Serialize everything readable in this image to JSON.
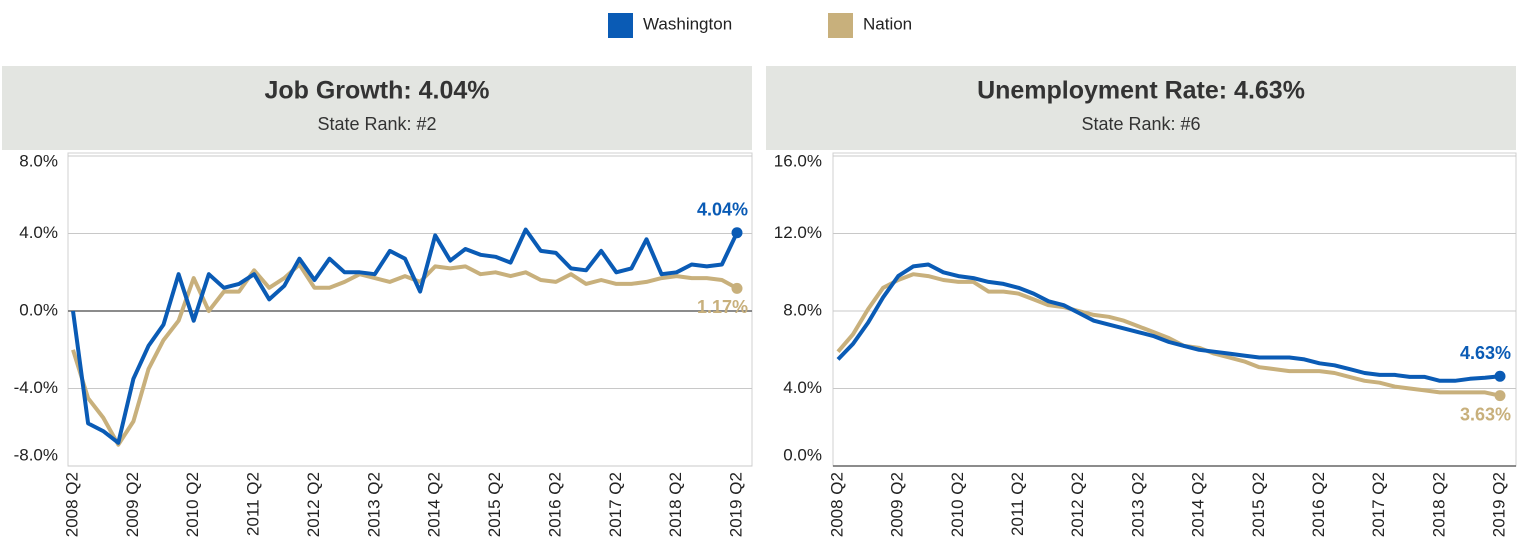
{
  "legend_position": "top",
  "chart_data": [
    {
      "type": "line",
      "title": "Job Growth: 4.04%",
      "subtitle": "State Rank: #2",
      "categories": [
        "2008 Q2",
        null,
        null,
        null,
        "2009 Q2",
        null,
        null,
        null,
        "2010 Q2",
        null,
        null,
        null,
        "2011 Q2",
        null,
        null,
        null,
        "2012 Q2",
        null,
        null,
        null,
        "2013 Q2",
        null,
        null,
        null,
        "2014 Q2",
        null,
        null,
        null,
        "2015 Q2",
        null,
        null,
        null,
        "2016 Q2",
        null,
        null,
        null,
        "2017 Q2",
        null,
        null,
        null,
        "2018 Q2",
        null,
        null,
        null,
        "2019 Q2"
      ],
      "ylim": [
        -8,
        8
      ],
      "yticks": [
        {
          "value": -8,
          "label": "-8.0%"
        },
        {
          "value": -4,
          "label": "-4.0%"
        },
        {
          "value": 0,
          "label": "0.0%"
        },
        {
          "value": 4,
          "label": "4.0%"
        },
        {
          "value": 8,
          "label": "8.0%"
        }
      ],
      "grid": true,
      "series": [
        {
          "name": "Washington",
          "color": "#0a5bb5",
          "values": [
            0,
            -5.8,
            -6.2,
            -6.8,
            -3.5,
            -1.8,
            -0.7,
            1.9,
            -0.5,
            1.9,
            1.2,
            1.4,
            1.9,
            0.6,
            1.3,
            2.7,
            1.6,
            2.7,
            2.0,
            2.0,
            1.9,
            3.1,
            2.7,
            1.0,
            3.9,
            2.6,
            3.2,
            2.9,
            2.8,
            2.5,
            4.2,
            3.1,
            3.0,
            2.2,
            2.1,
            3.1,
            2.0,
            2.2,
            3.7,
            1.9,
            2.0,
            2.4,
            2.3,
            2.4,
            4.04
          ],
          "value_labels": [
            null,
            null,
            null,
            null,
            null,
            null,
            null,
            null,
            null,
            null,
            null,
            null,
            null,
            null,
            null,
            null,
            null,
            null,
            null,
            null,
            null,
            null,
            null,
            null,
            null,
            null,
            null,
            null,
            null,
            null,
            null,
            null,
            null,
            null,
            null,
            null,
            null,
            null,
            null,
            null,
            null,
            null,
            null,
            null,
            "4.04%"
          ]
        },
        {
          "name": "Nation",
          "color": "#c8b07c",
          "values": [
            -2.0,
            -4.5,
            -5.5,
            -6.9,
            -5.7,
            -3.0,
            -1.5,
            -0.5,
            1.7,
            0.0,
            1.0,
            1.0,
            2.1,
            1.2,
            1.7,
            2.4,
            1.2,
            1.2,
            1.5,
            1.9,
            1.7,
            1.5,
            1.8,
            1.5,
            2.3,
            2.2,
            2.3,
            1.9,
            2.0,
            1.8,
            2.0,
            1.6,
            1.5,
            1.9,
            1.4,
            1.6,
            1.4,
            1.4,
            1.5,
            1.7,
            1.8,
            1.7,
            1.7,
            1.6,
            1.17
          ],
          "value_labels": [
            null,
            null,
            null,
            null,
            null,
            null,
            null,
            null,
            null,
            null,
            null,
            null,
            null,
            null,
            null,
            null,
            null,
            null,
            null,
            null,
            null,
            null,
            null,
            null,
            null,
            null,
            null,
            null,
            null,
            null,
            null,
            null,
            null,
            null,
            null,
            null,
            null,
            null,
            null,
            null,
            null,
            null,
            null,
            null,
            "1.17%"
          ]
        }
      ]
    },
    {
      "type": "line",
      "title": "Unemployment Rate: 4.63%",
      "subtitle": "State Rank: #6",
      "categories": [
        "2008 Q2",
        null,
        null,
        null,
        "2009 Q2",
        null,
        null,
        null,
        "2010 Q2",
        null,
        null,
        null,
        "2011 Q2",
        null,
        null,
        null,
        "2012 Q2",
        null,
        null,
        null,
        "2013 Q2",
        null,
        null,
        null,
        "2014 Q2",
        null,
        null,
        null,
        "2015 Q2",
        null,
        null,
        null,
        "2016 Q2",
        null,
        null,
        null,
        "2017 Q2",
        null,
        null,
        null,
        "2018 Q2",
        null,
        null,
        null,
        "2019 Q2"
      ],
      "ylim": [
        0,
        16
      ],
      "yticks": [
        {
          "value": 0,
          "label": "0.0%"
        },
        {
          "value": 4,
          "label": "4.0%"
        },
        {
          "value": 8,
          "label": "8.0%"
        },
        {
          "value": 12,
          "label": "12.0%"
        },
        {
          "value": 16,
          "label": "16.0%"
        }
      ],
      "grid": true,
      "series": [
        {
          "color": "#0a5bb5",
          "values": [
            5.5,
            6.3,
            7.4,
            8.7,
            9.8,
            10.3,
            10.4,
            10.0,
            9.8,
            9.7,
            9.5,
            9.4,
            9.2,
            8.9,
            8.5,
            8.3,
            7.9,
            7.5,
            7.3,
            7.1,
            6.9,
            6.7,
            6.4,
            6.2,
            6.0,
            5.9,
            5.8,
            5.7,
            5.6,
            5.6,
            5.6,
            5.5,
            5.3,
            5.2,
            5.0,
            4.8,
            4.7,
            4.7,
            4.6,
            4.6,
            4.4,
            4.4,
            4.5,
            4.55,
            4.63
          ],
          "value_labels": [
            null,
            null,
            null,
            null,
            null,
            null,
            null,
            null,
            null,
            null,
            null,
            null,
            null,
            null,
            null,
            null,
            null,
            null,
            null,
            null,
            null,
            null,
            null,
            null,
            null,
            null,
            null,
            null,
            null,
            null,
            null,
            null,
            null,
            null,
            null,
            null,
            null,
            null,
            null,
            null,
            null,
            null,
            null,
            null,
            "4.63%"
          ]
        },
        {
          "color": "#c8b07c",
          "values": [
            5.9,
            6.8,
            8.1,
            9.2,
            9.6,
            9.9,
            9.8,
            9.6,
            9.5,
            9.5,
            9.0,
            9.0,
            8.9,
            8.6,
            8.3,
            8.2,
            8.0,
            7.8,
            7.7,
            7.5,
            7.2,
            6.9,
            6.6,
            6.2,
            6.1,
            5.8,
            5.6,
            5.4,
            5.1,
            5.0,
            4.9,
            4.9,
            4.9,
            4.8,
            4.6,
            4.4,
            4.3,
            4.1,
            4.0,
            3.9,
            3.8,
            3.8,
            3.8,
            3.8,
            3.63
          ],
          "value_labels": [
            null,
            null,
            null,
            null,
            null,
            null,
            null,
            null,
            null,
            null,
            null,
            null,
            null,
            null,
            null,
            null,
            null,
            null,
            null,
            null,
            null,
            null,
            null,
            null,
            null,
            null,
            null,
            null,
            null,
            null,
            null,
            null,
            null,
            null,
            null,
            null,
            null,
            null,
            null,
            null,
            null,
            null,
            null,
            null,
            "3.63%"
          ]
        }
      ]
    }
  ]
}
